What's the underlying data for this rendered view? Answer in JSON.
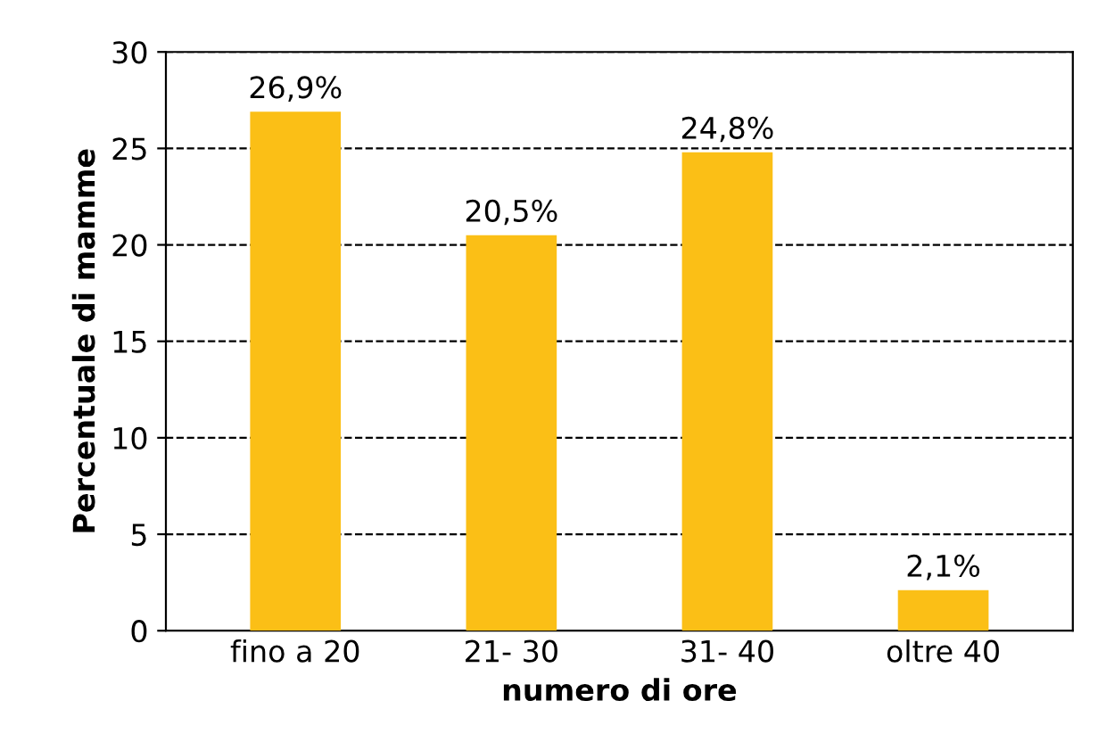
{
  "chart_data": {
    "type": "bar",
    "xlabel": "numero di ore",
    "ylabel": "Percentuale di mamme",
    "categories": [
      "fino a 20",
      "21- 30",
      "31- 40",
      "oltre 40"
    ],
    "values": [
      26.9,
      20.5,
      24.8,
      2.1
    ],
    "value_labels": [
      "26,9%",
      "20,5%",
      "24,8%",
      "2,1%"
    ],
    "color": "#fbbf16",
    "ylim": [
      0,
      30
    ],
    "yticks": [
      0,
      5,
      10,
      15,
      20,
      25,
      30
    ],
    "grid": "y",
    "line_style": "dashed"
  }
}
